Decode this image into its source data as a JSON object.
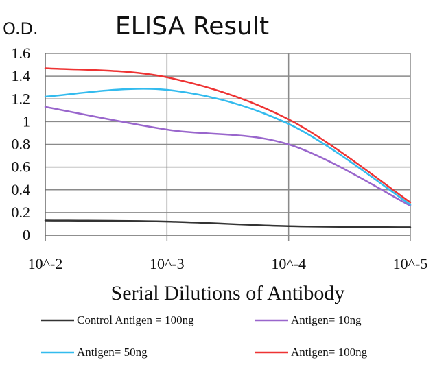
{
  "chart_data": {
    "type": "line",
    "title": "ELISA Result",
    "ylabel": "O.D.",
    "xlabel": "Serial Dilutions of Antibody",
    "ylim": [
      0,
      1.6
    ],
    "yticks": [
      "0",
      "0.2",
      "0.4",
      "0.6",
      "0.8",
      "1",
      "1.2",
      "1.4",
      "1.6"
    ],
    "categories": [
      "10^-2",
      "10^-3",
      "10^-4",
      "10^-5"
    ],
    "grid": true,
    "legend_position": "bottom",
    "series": [
      {
        "name": "Control Antigen = 100ng",
        "color": "#333333",
        "values": [
          0.13,
          0.12,
          0.08,
          0.07
        ]
      },
      {
        "name": "Antigen= 10ng",
        "color": "#9966cc",
        "values": [
          1.13,
          0.93,
          0.8,
          0.26
        ]
      },
      {
        "name": "Antigen= 50ng",
        "color": "#33bbee",
        "values": [
          1.22,
          1.28,
          0.98,
          0.27
        ]
      },
      {
        "name": "Antigen= 100ng",
        "color": "#ee3333",
        "values": [
          1.47,
          1.39,
          1.02,
          0.29
        ]
      }
    ]
  }
}
